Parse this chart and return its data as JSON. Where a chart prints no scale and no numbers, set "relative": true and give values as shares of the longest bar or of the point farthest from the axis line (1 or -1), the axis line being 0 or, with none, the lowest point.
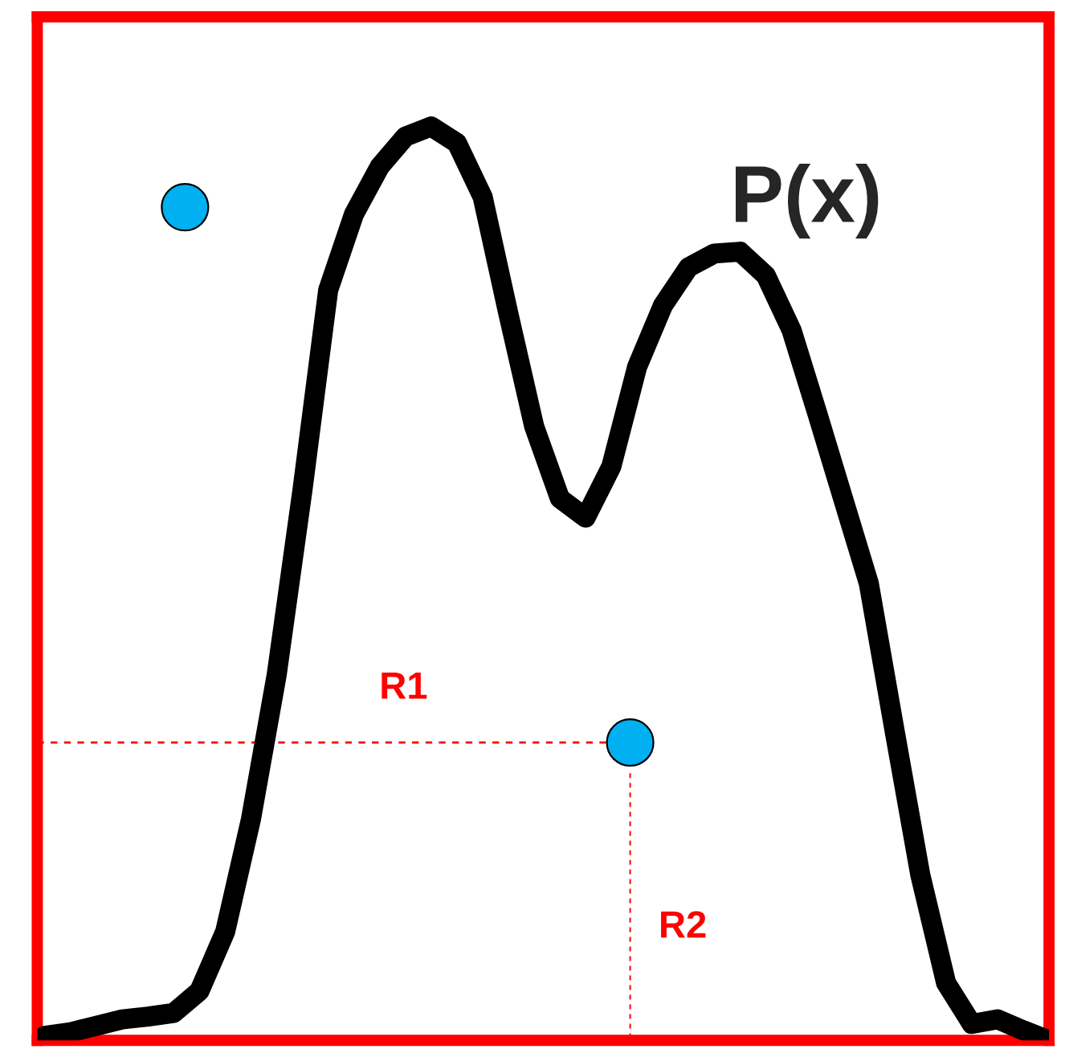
{
  "chart_data": {
    "type": "line",
    "relative": true,
    "categories": [
      null,
      null,
      null,
      null,
      null,
      null,
      null,
      null,
      null,
      null,
      null,
      null,
      null,
      null,
      null,
      null,
      null,
      null,
      null,
      null,
      null,
      null,
      null,
      null,
      null,
      null,
      null,
      null,
      null,
      null,
      null,
      null,
      null,
      null,
      null,
      null,
      null,
      null,
      null,
      null
    ],
    "series": [
      {
        "name": "P(x)",
        "color": "#000000",
        "values": [
          0.005,
          0.009,
          0.016,
          0.023,
          0.026,
          0.03,
          0.054,
          0.119,
          0.242,
          0.4,
          0.602,
          0.821,
          0.904,
          0.956,
          0.989,
          1.0,
          0.982,
          0.923,
          0.795,
          0.672,
          0.593,
          0.572,
          0.628,
          0.737,
          0.804,
          0.846,
          0.861,
          0.863,
          0.837,
          0.777,
          0.686,
          0.593,
          0.5,
          0.339,
          0.181,
          0.063,
          0.018,
          0.023,
          0.011,
          0.0
        ]
      }
    ],
    "ref_lines": [
      {
        "axis": "y",
        "value": 0.326,
        "label": "R1",
        "color": "#ff0000",
        "line_style": "dashed"
      }
    ],
    "annotations": [
      "R2"
    ]
  }
}
